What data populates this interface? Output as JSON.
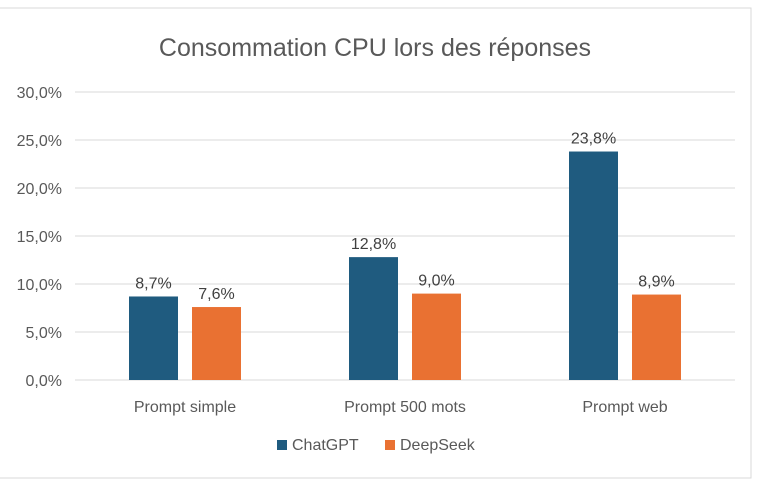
{
  "chart_data": {
    "type": "bar",
    "title": "Consommation CPU lors des réponses",
    "categories": [
      "Prompt simple",
      "Prompt 500 mots",
      "Prompt web"
    ],
    "series": [
      {
        "name": "ChatGPT",
        "values": [
          8.7,
          12.8,
          23.8
        ],
        "labels": [
          "8,7%",
          "12,8%",
          "23,8%"
        ],
        "color": "#1f5b7f"
      },
      {
        "name": "DeepSeek",
        "values": [
          7.6,
          9.0,
          8.9
        ],
        "labels": [
          "7,6%",
          "9,0%",
          "8,9%"
        ],
        "color": "#e97132"
      }
    ],
    "ylim": [
      0,
      30
    ],
    "yticks": [
      0,
      5,
      10,
      15,
      20,
      25,
      30
    ],
    "ytick_labels": [
      "0,0%",
      "5,0%",
      "10,0%",
      "15,0%",
      "20,0%",
      "25,0%",
      "30,0%"
    ],
    "xlabel": "",
    "ylabel": "",
    "grid": true,
    "legend_position": "bottom"
  },
  "colors": {
    "gridline": "#d9d9d9",
    "border": "#d9d9d9"
  }
}
